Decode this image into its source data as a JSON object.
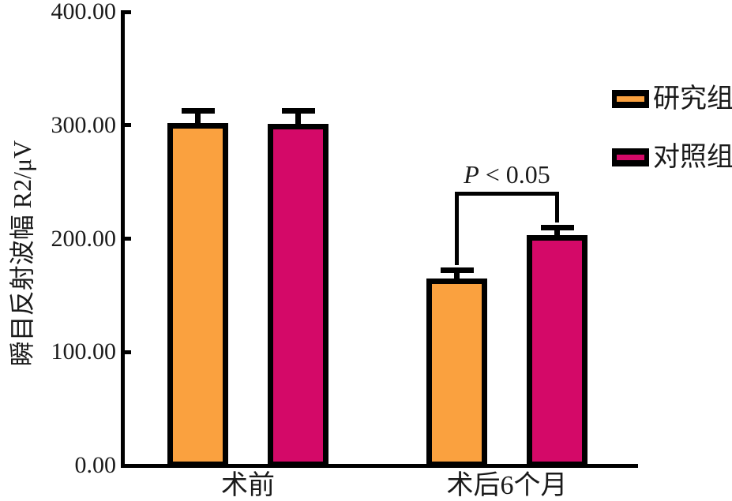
{
  "chart_data": {
    "type": "bar",
    "title": "",
    "xlabel": "",
    "ylabel": "瞬目反射波幅 R2/μV",
    "categories": [
      "术前",
      "术后6个月"
    ],
    "series": [
      {
        "name": "研究组",
        "color": "#FAA13F",
        "values": [
          302,
          165
        ],
        "errors": [
          11,
          7
        ]
      },
      {
        "name": "对照组",
        "color": "#D40968",
        "values": [
          301,
          203
        ],
        "errors": [
          12,
          7
        ]
      }
    ],
    "ylim": [
      0,
      400
    ],
    "yticks": [
      0,
      100,
      200,
      300,
      400
    ],
    "ytick_decimals": 2,
    "grid": false,
    "legend_position": "right",
    "error_bars": "upper-with-cap",
    "annotation": {
      "italic": "P",
      "rest": " < 0.05",
      "category": "术后6个月",
      "between": [
        "研究组",
        "对照组"
      ]
    }
  },
  "colors": {
    "axis": "#000000",
    "text": "#1a1a1a",
    "background": "#ffffff"
  }
}
